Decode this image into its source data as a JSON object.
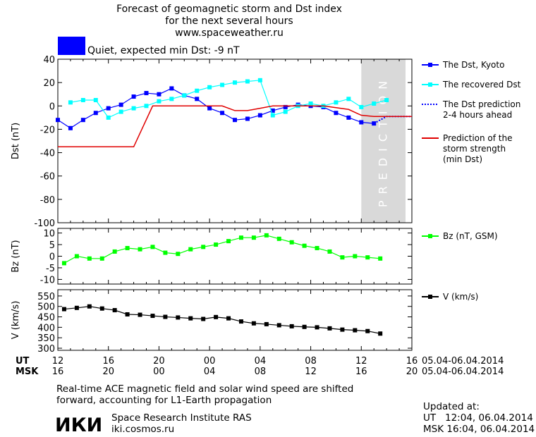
{
  "header": {
    "title_lines": [
      "Forecast of geomagnetic storm and Dst index",
      "for the next several hours",
      "www.spaceweather.ru"
    ],
    "status_text": "Quiet, expected min Dst: -9 nT",
    "status_color": "#0000ff",
    "prediction_label": "PREDICTION"
  },
  "chart_data": [
    {
      "type": "line",
      "ylabel": "Dst (nT)",
      "ylim": [
        -100,
        40
      ],
      "xlim": [
        12,
        40
      ],
      "yticks": [
        40,
        20,
        0,
        -20,
        -40,
        -60,
        -80,
        -100
      ],
      "prediction_band": [
        36,
        39.5
      ],
      "series": [
        {
          "name": "The Dst, Kyoto",
          "color": "#0000ff",
          "style": "solid-square",
          "x": [
            12,
            13,
            14,
            15,
            16,
            17,
            18,
            19,
            20,
            21,
            22,
            23,
            24,
            25,
            26,
            27,
            28,
            29,
            30,
            31,
            32,
            33,
            34,
            35,
            36,
            37
          ],
          "y": [
            -12,
            -19,
            -12,
            -6,
            -2,
            1,
            8,
            11,
            10,
            15,
            9,
            6,
            -2,
            -6,
            -12,
            -11,
            -8,
            -4,
            -1,
            1,
            0,
            -1,
            -6,
            -10,
            -14,
            -15
          ]
        },
        {
          "name": "The recovered Dst",
          "color": "#00ffff",
          "style": "solid-square",
          "x": [
            13,
            14,
            15,
            16,
            17,
            18,
            19,
            20,
            21,
            22,
            23,
            24,
            25,
            26,
            27,
            28,
            29,
            30,
            31,
            32,
            33,
            34,
            35,
            36,
            37,
            38
          ],
          "y": [
            3,
            5,
            5,
            -10,
            -5,
            -2,
            0,
            4,
            6,
            9,
            13,
            16,
            18,
            20,
            21,
            22,
            -8,
            -5,
            0,
            2,
            0,
            3,
            6,
            -1,
            2,
            5
          ]
        },
        {
          "name": "The Dst prediction\n2-4 hours ahead",
          "color": "#0000ff",
          "style": "dotted",
          "x": [
            37,
            38,
            39,
            40
          ],
          "y": [
            -15,
            -9,
            -9,
            -9
          ]
        },
        {
          "name": "Prediction of the\nstorm strength\n(min Dst)",
          "color": "#e00000",
          "style": "solid",
          "x": [
            12,
            18,
            19.5,
            25,
            26,
            27,
            28,
            29,
            31,
            33,
            35,
            36,
            37,
            40
          ],
          "y": [
            -35,
            -35,
            0,
            0,
            -4,
            -4,
            -2,
            0,
            0,
            0,
            -3,
            -8,
            -9,
            -9
          ]
        }
      ]
    },
    {
      "type": "line",
      "ylabel": "Bz (nT)",
      "ylim": [
        -12,
        12
      ],
      "xlim": [
        12,
        40
      ],
      "yticks": [
        10,
        5,
        0,
        -5,
        -10
      ],
      "series": [
        {
          "name": "Bz (nT, GSM)",
          "color": "#00ff00",
          "style": "solid-square",
          "x": [
            12.5,
            13.5,
            14.5,
            15.5,
            16.5,
            17.5,
            18.5,
            19.5,
            20.5,
            21.5,
            22.5,
            23.5,
            24.5,
            25.5,
            26.5,
            27.5,
            28.5,
            29.5,
            30.5,
            31.5,
            32.5,
            33.5,
            34.5,
            35.5,
            36.5,
            37.5
          ],
          "y": [
            -3,
            0,
            -1,
            -1,
            2,
            3.5,
            3,
            4,
            1.5,
            1,
            3,
            4,
            5,
            6.5,
            8,
            8,
            9,
            7.5,
            6,
            4.5,
            3.5,
            2,
            -0.5,
            0,
            -0.5,
            -1
          ]
        }
      ]
    },
    {
      "type": "line",
      "ylabel": "V (km/s)",
      "ylim": [
        290,
        580
      ],
      "xlim": [
        12,
        40
      ],
      "yticks": [
        550,
        500,
        450,
        400,
        350,
        300
      ],
      "series": [
        {
          "name": "V (km/s)",
          "color": "#000000",
          "style": "solid-square",
          "x": [
            12.5,
            13.5,
            14.5,
            15.5,
            16.5,
            17.5,
            18.5,
            19.5,
            20.5,
            21.5,
            22.5,
            23.5,
            24.5,
            25.5,
            26.5,
            27.5,
            28.5,
            29.5,
            30.5,
            31.5,
            32.5,
            33.5,
            34.5,
            35.5,
            36.5,
            37.5
          ],
          "y": [
            487,
            493,
            500,
            490,
            482,
            462,
            460,
            455,
            450,
            447,
            443,
            440,
            449,
            443,
            428,
            419,
            415,
            410,
            405,
            402,
            400,
            395,
            389,
            386,
            382,
            370
          ]
        }
      ]
    }
  ],
  "time_axis": {
    "ut_label": "UT",
    "msk_label": "MSK",
    "ut_ticks": [
      "12",
      "16",
      "20",
      "00",
      "04",
      "08",
      "12",
      "16"
    ],
    "msk_ticks": [
      "16",
      "20",
      "00",
      "04",
      "08",
      "12",
      "16",
      "20"
    ],
    "ut_date": "05.04-06.04.2014",
    "msk_date": "05.04-06.04.2014"
  },
  "footer": {
    "note_lines": [
      "Real-time ACE magnetic field and solar wind speed are shifted",
      "forward, accounting for L1-Earth propagation"
    ],
    "logo_text": "ИКИ",
    "institute": "Space Research Institute RAS",
    "website": "iki.cosmos.ru",
    "updated_label": "Updated at:",
    "updated_ut": "UT   12:04, 06.04.2014",
    "updated_msk": "MSK 16:04, 06.04.2014"
  }
}
